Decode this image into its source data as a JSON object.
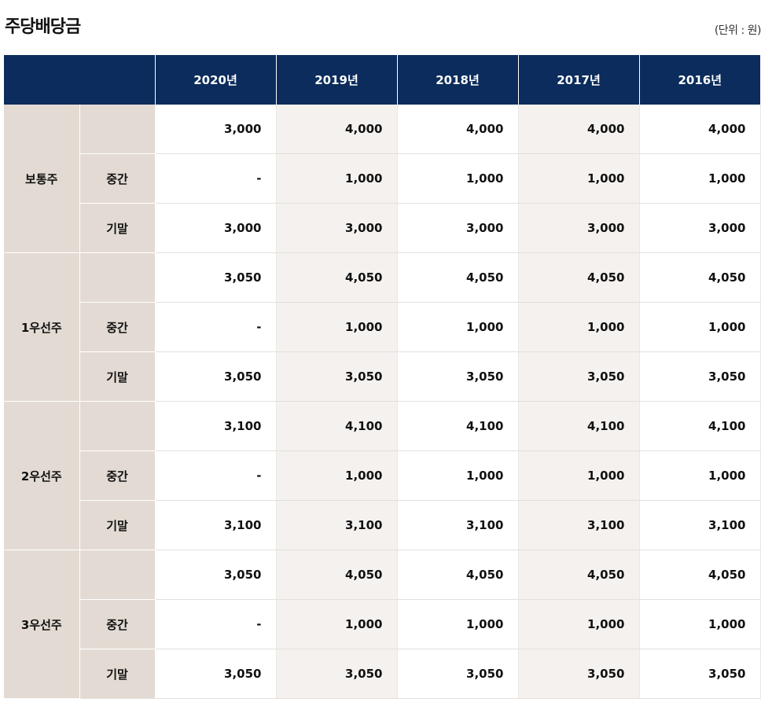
{
  "title": "주당배당금",
  "unit": "(단위 : 원)",
  "header": {
    "blank": "",
    "years": [
      "2020년",
      "2019년",
      "2018년",
      "2017년",
      "2016년"
    ]
  },
  "groups": [
    {
      "name": "보통주",
      "rows": [
        {
          "sub": "",
          "values": [
            "3,000",
            "4,000",
            "4,000",
            "4,000",
            "4,000"
          ]
        },
        {
          "sub": "중간",
          "values": [
            "-",
            "1,000",
            "1,000",
            "1,000",
            "1,000"
          ]
        },
        {
          "sub": "기말",
          "values": [
            "3,000",
            "3,000",
            "3,000",
            "3,000",
            "3,000"
          ]
        }
      ]
    },
    {
      "name": "1우선주",
      "rows": [
        {
          "sub": "",
          "values": [
            "3,050",
            "4,050",
            "4,050",
            "4,050",
            "4,050"
          ]
        },
        {
          "sub": "중간",
          "values": [
            "-",
            "1,000",
            "1,000",
            "1,000",
            "1,000"
          ]
        },
        {
          "sub": "기말",
          "values": [
            "3,050",
            "3,050",
            "3,050",
            "3,050",
            "3,050"
          ]
        }
      ]
    },
    {
      "name": "2우선주",
      "rows": [
        {
          "sub": "",
          "values": [
            "3,100",
            "4,100",
            "4,100",
            "4,100",
            "4,100"
          ]
        },
        {
          "sub": "중간",
          "values": [
            "-",
            "1,000",
            "1,000",
            "1,000",
            "1,000"
          ]
        },
        {
          "sub": "기말",
          "values": [
            "3,100",
            "3,100",
            "3,100",
            "3,100",
            "3,100"
          ]
        }
      ]
    },
    {
      "name": "3우선주",
      "rows": [
        {
          "sub": "",
          "values": [
            "3,050",
            "4,050",
            "4,050",
            "4,050",
            "4,050"
          ]
        },
        {
          "sub": "중간",
          "values": [
            "-",
            "1,000",
            "1,000",
            "1,000",
            "1,000"
          ]
        },
        {
          "sub": "기말",
          "values": [
            "3,050",
            "3,050",
            "3,050",
            "3,050",
            "3,050"
          ]
        }
      ]
    }
  ]
}
